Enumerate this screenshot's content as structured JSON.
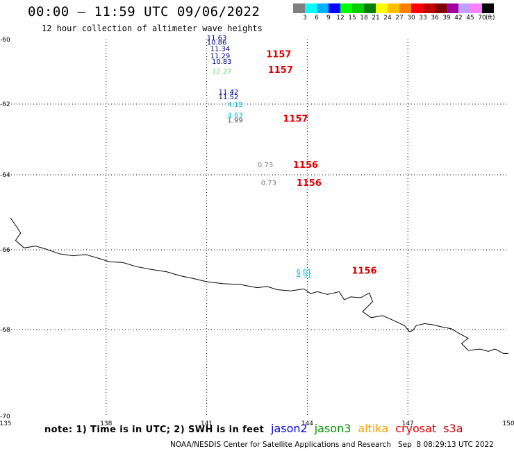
{
  "header": {
    "title": "00:00 – 11:59 UTC 09/06/2022",
    "subtitle": "12 hour collection of altimeter wave heights"
  },
  "color_scale": {
    "ticks": [
      "3",
      "6",
      "9",
      "12",
      "15",
      "18",
      "21",
      "24",
      "27",
      "30",
      "33",
      "36",
      "39",
      "42",
      "45",
      "70"
    ],
    "colors": [
      "#808080",
      "#00ffff",
      "#00b0ff",
      "#0000ff",
      "#00ff00",
      "#00d000",
      "#008000",
      "#ffff00",
      "#ffc000",
      "#ff8000",
      "#ff0000",
      "#c00000",
      "#800000",
      "#a000a0",
      "#c0a0ff",
      "#ff80ff",
      "#000000"
    ],
    "unit": "(ft)"
  },
  "map": {
    "lon_range": [
      135,
      150
    ],
    "lat_range": [
      -60,
      -70
    ],
    "lon_ticks": [
      "135",
      "138",
      "141",
      "144",
      "147",
      "150"
    ],
    "lat_ticks": [
      "-60",
      "-62",
      "-64",
      "-66",
      "-68",
      "-70"
    ],
    "grid": "dotted",
    "observations": [
      {
        "value": "11.63",
        "lon": 141.3,
        "lat": -60.02,
        "color": "#00008b"
      },
      {
        "value": "10.86",
        "lon": 141.3,
        "lat": -60.16,
        "color": "#00008b"
      },
      {
        "value": "11.34",
        "lon": 141.4,
        "lat": -60.35,
        "color": "#00008b"
      },
      {
        "value": "11.29",
        "lon": 141.4,
        "lat": -60.58,
        "color": "#00008b"
      },
      {
        "value": "10.83",
        "lon": 141.45,
        "lat": -60.75,
        "color": "#00008b"
      },
      {
        "value": "12.27",
        "lon": 141.45,
        "lat": -61.05,
        "color": "#66dd66"
      },
      {
        "value": "11.42",
        "lon": 141.65,
        "lat": -61.7,
        "color": "#00008b"
      },
      {
        "value": "11.52",
        "lon": 141.65,
        "lat": -61.85,
        "color": "#00008b"
      },
      {
        "value": "4.13",
        "lon": 141.85,
        "lat": -62.08,
        "color": "#00bfdf"
      },
      {
        "value": "4.63",
        "lon": 141.85,
        "lat": -62.38,
        "color": "#00bfdf"
      },
      {
        "value": "1.99",
        "lon": 141.85,
        "lat": -62.52,
        "color": "#555555"
      },
      {
        "value": "0.73",
        "lon": 142.75,
        "lat": -63.78,
        "color": "#777777"
      },
      {
        "value": "0.73",
        "lon": 142.85,
        "lat": -64.28,
        "color": "#777777"
      },
      {
        "value": "6.61",
        "lon": 143.9,
        "lat": -66.6,
        "color": "#00bfdf"
      },
      {
        "value": "4.91",
        "lon": 143.9,
        "lat": -66.7,
        "color": "#00bfdf"
      }
    ],
    "time_labels": [
      {
        "text": "1157",
        "lon": 143.15,
        "lat": -60.55
      },
      {
        "text": "1157",
        "lon": 143.2,
        "lat": -61.03
      },
      {
        "text": "1157",
        "lon": 143.65,
        "lat": -62.5
      },
      {
        "text": "1156",
        "lon": 143.95,
        "lat": -63.8
      },
      {
        "text": "1156",
        "lon": 144.05,
        "lat": -64.3
      },
      {
        "text": "1156",
        "lon": 145.7,
        "lat": -66.6
      }
    ],
    "coastline": [
      [
        135.15,
        -65.15
      ],
      [
        135.3,
        -65.35
      ],
      [
        135.45,
        -65.55
      ],
      [
        135.3,
        -65.75
      ],
      [
        135.55,
        -65.95
      ],
      [
        135.9,
        -65.9
      ],
      [
        136.2,
        -65.98
      ],
      [
        136.6,
        -66.1
      ],
      [
        137.0,
        -66.15
      ],
      [
        137.4,
        -66.12
      ],
      [
        137.8,
        -66.22
      ],
      [
        138.1,
        -66.3
      ],
      [
        138.5,
        -66.32
      ],
      [
        138.9,
        -66.42
      ],
      [
        139.4,
        -66.5
      ],
      [
        139.8,
        -66.55
      ],
      [
        140.2,
        -66.65
      ],
      [
        140.6,
        -66.72
      ],
      [
        141.0,
        -66.8
      ],
      [
        141.5,
        -66.85
      ],
      [
        142.0,
        -66.87
      ],
      [
        142.5,
        -66.95
      ],
      [
        142.8,
        -66.92
      ],
      [
        143.1,
        -67.0
      ],
      [
        143.5,
        -67.03
      ],
      [
        143.9,
        -66.98
      ],
      [
        144.1,
        -67.1
      ],
      [
        144.3,
        -67.05
      ],
      [
        144.6,
        -67.12
      ],
      [
        144.95,
        -67.05
      ],
      [
        145.1,
        -67.25
      ],
      [
        145.3,
        -67.18
      ],
      [
        145.6,
        -67.2
      ],
      [
        145.85,
        -67.08
      ],
      [
        145.95,
        -67.3
      ],
      [
        145.65,
        -67.55
      ],
      [
        145.9,
        -67.7
      ],
      [
        146.25,
        -67.65
      ],
      [
        146.6,
        -67.78
      ],
      [
        146.9,
        -67.9
      ],
      [
        147.05,
        -68.05
      ],
      [
        147.15,
        -68.02
      ],
      [
        147.25,
        -67.9
      ],
      [
        147.5,
        -67.85
      ],
      [
        147.75,
        -67.88
      ],
      [
        148.0,
        -67.93
      ],
      [
        148.3,
        -67.98
      ],
      [
        148.55,
        -68.1
      ],
      [
        148.8,
        -68.2
      ],
      [
        148.6,
        -68.32
      ],
      [
        148.8,
        -68.48
      ],
      [
        149.15,
        -68.45
      ],
      [
        149.4,
        -68.5
      ],
      [
        149.6,
        -68.45
      ],
      [
        149.85,
        -68.55
      ],
      [
        150.0,
        -68.55
      ]
    ]
  },
  "note": "note: 1) Time is in UTC; 2) SWH is in feet",
  "legend": [
    {
      "name": "jason2",
      "color": "#0000e0"
    },
    {
      "name": "jason3",
      "color": "#009000"
    },
    {
      "name": "altika",
      "color": "#ffa000"
    },
    {
      "name": "cryosat",
      "color": "#e00000"
    },
    {
      "name": "s3a",
      "color": "#c00000"
    }
  ],
  "credit": "NOAA/NESDIS Center for Satellite Applications and Research   Sep  8 08:29:13 UTC 2022"
}
